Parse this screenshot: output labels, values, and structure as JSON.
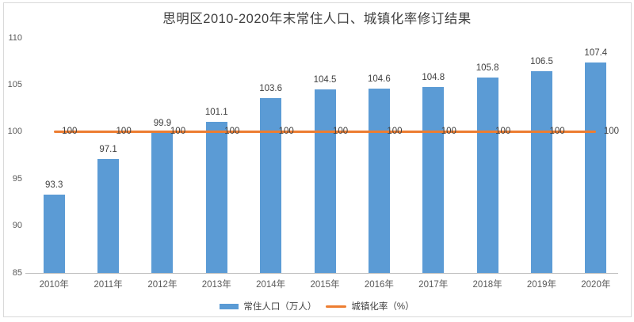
{
  "chart_data": {
    "type": "combo",
    "title": "思明区2010-2020年末常住人口、城镇化率修订结果",
    "categories": [
      "2010年",
      "2011年",
      "2012年",
      "2013年",
      "2014年",
      "2015年",
      "2016年",
      "2017年",
      "2018年",
      "2019年",
      "2020年"
    ],
    "series": [
      {
        "name": "常住人口（万人）",
        "type": "bar",
        "color": "#5B9BD5",
        "values": [
          93.3,
          97.1,
          99.9,
          101.1,
          103.6,
          104.5,
          104.6,
          104.8,
          105.8,
          106.5,
          107.4
        ]
      },
      {
        "name": "城镇化率（%）",
        "type": "line",
        "color": "#ED7D31",
        "values": [
          100,
          100,
          100,
          100,
          100,
          100,
          100,
          100,
          100,
          100,
          100
        ]
      }
    ],
    "ylim": [
      85,
      110
    ],
    "yticks": [
      85,
      90,
      95,
      100,
      105,
      110
    ],
    "grid": false,
    "legend_position": "bottom",
    "data_labels": true,
    "colors": {
      "axis_line": "#BFBFBF",
      "tick_text": "#595959",
      "data_label_text": "#404040",
      "title_text": "#404040",
      "border": "#D9D9D9",
      "background": "#FFFFFF"
    }
  }
}
